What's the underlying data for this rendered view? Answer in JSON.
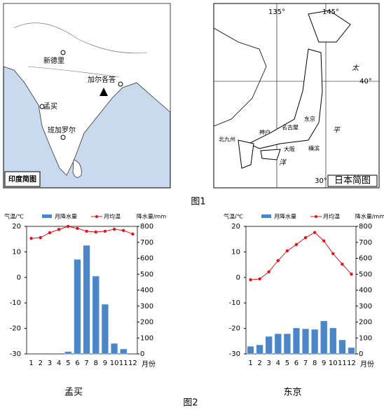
{
  "map1": {
    "title": "印度简图",
    "cities": [
      "新德里",
      "加尔各答",
      "孟买",
      "班加罗尔"
    ]
  },
  "map2": {
    "title": "日本简图",
    "longitudes": [
      "135°",
      "145°"
    ],
    "latitudes": [
      "40°",
      "30°"
    ],
    "sea": [
      "太",
      "平",
      "洋"
    ],
    "cities": [
      "北九州",
      "神户",
      "名古屋",
      "东京",
      "大阪",
      "横滨"
    ]
  },
  "figure1_caption": "图1",
  "figure2_caption": "图2",
  "chart_data": [
    {
      "type": "climate",
      "caption": "孟买",
      "ylabel": "气温/℃",
      "y2label": "降水量/mm",
      "xlabel": "月份",
      "categories": [
        "1",
        "2",
        "3",
        "4",
        "5",
        "6",
        "7",
        "8",
        "9",
        "10",
        "11",
        "12"
      ],
      "series": [
        {
          "name": "月降水量",
          "color": "#4a86c8",
          "axis": "y2",
          "values": [
            0,
            0,
            0,
            0,
            15,
            593,
            681,
            488,
            312,
            66,
            31,
            0
          ]
        },
        {
          "name": "月均温",
          "color": "#e8101a",
          "values": [
            15.3,
            15.6,
            17.5,
            18.8,
            20,
            19.2,
            18.1,
            17.8,
            18.1,
            18.9,
            18.4,
            17
          ]
        }
      ],
      "ylim": [
        -30,
        20
      ],
      "yticks": [
        20,
        10,
        0,
        -10,
        -20,
        -30
      ],
      "y2lim": [
        0,
        800
      ],
      "y2ticks": [
        800,
        700,
        600,
        500,
        400,
        300,
        200,
        100,
        0
      ]
    },
    {
      "type": "climate",
      "caption": "东京",
      "ylabel": "气温/℃",
      "y2label": "降水量/mm",
      "xlabel": "月份",
      "categories": [
        "1",
        "2",
        "3",
        "4",
        "5",
        "6",
        "7",
        "8",
        "9",
        "10",
        "11",
        "12"
      ],
      "series": [
        {
          "name": "月降水量",
          "color": "#4a86c8",
          "axis": "y2",
          "values": [
            48,
            57,
            110,
            127,
            127,
            163,
            158,
            154,
            207,
            163,
            88,
            40
          ]
        },
        {
          "name": "月均温",
          "color": "#e8101a",
          "values": [
            -0.9,
            -0.6,
            2.2,
            6.6,
            10.4,
            12.9,
            15.6,
            17.6,
            14.3,
            9.3,
            5.2,
            1.3
          ]
        }
      ],
      "ylim": [
        -30,
        20
      ],
      "yticks": [
        20,
        10,
        0,
        -10,
        -20,
        -30
      ],
      "y2lim": [
        0,
        800
      ],
      "y2ticks": [
        800,
        700,
        600,
        500,
        400,
        300,
        200,
        100,
        0
      ]
    }
  ]
}
